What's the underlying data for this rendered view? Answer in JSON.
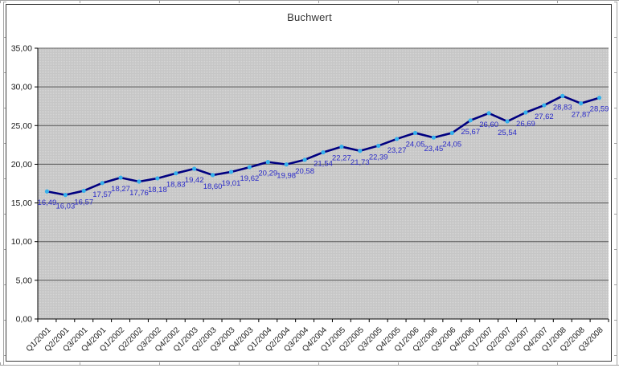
{
  "chart_data": {
    "type": "line",
    "title": "Buchwert",
    "xlabel": "",
    "ylabel": "",
    "ylim": [
      0,
      35
    ],
    "y_tick_step": 5,
    "y_tick_labels": [
      "0,00",
      "5,00",
      "10,00",
      "15,00",
      "20,00",
      "25,00",
      "30,00",
      "35,00"
    ],
    "grid": "horizontal",
    "legend_position": "none",
    "categories": [
      "Q1/2001",
      "Q2/2001",
      "Q3/2001",
      "Q4/2001",
      "Q1/2002",
      "Q2/2002",
      "Q3/2002",
      "Q4/2002",
      "Q1/2003",
      "Q2/2003",
      "Q3/2003",
      "Q4/2003",
      "Q1/2004",
      "Q2/2004",
      "Q3/2004",
      "Q4/2004",
      "Q1/2005",
      "Q2/2005",
      "Q3/2005",
      "Q4/2005",
      "Q1/2006",
      "Q2/2006",
      "Q3/2006",
      "Q4/2006",
      "Q1/2007",
      "Q2/2007",
      "Q3/2007",
      "Q4/2007",
      "Q1/2008",
      "Q2/2008",
      "Q3/2008"
    ],
    "series": [
      {
        "name": "Buchwert",
        "values": [
          16.49,
          16.03,
          16.57,
          17.57,
          18.27,
          17.76,
          18.18,
          18.83,
          19.42,
          18.6,
          19.01,
          19.62,
          20.29,
          19.98,
          20.58,
          21.54,
          22.27,
          21.73,
          22.39,
          23.27,
          24.05,
          23.45,
          24.05,
          25.67,
          26.6,
          25.54,
          26.69,
          27.62,
          28.83,
          27.87,
          28.59
        ],
        "point_labels": [
          "16,49",
          "16,03",
          "16,57",
          "17,57",
          "18,27",
          "17,76",
          "18,18",
          "18,83",
          "19,42",
          "18,60",
          "19,01",
          "19,62",
          "20,29",
          "19,98",
          "20,58",
          "21,54",
          "22,27",
          "21,73",
          "22,39",
          "23,27",
          "24,05",
          "23,45",
          "24,05",
          "25,67",
          "26,60",
          "25,54",
          "26,69",
          "27,62",
          "28,83",
          "27,87",
          "28,59"
        ]
      }
    ],
    "colors": {
      "line": "#000080",
      "marker": "#35B1EC",
      "point_label": "#2A2AC8",
      "plot_bg": "#C6C6C6",
      "plot_bg_dot": "#D6D6D6",
      "gridline": "#595959",
      "axis": "#000000",
      "tick_label": "#1a1a1a",
      "title": "#333333"
    }
  }
}
